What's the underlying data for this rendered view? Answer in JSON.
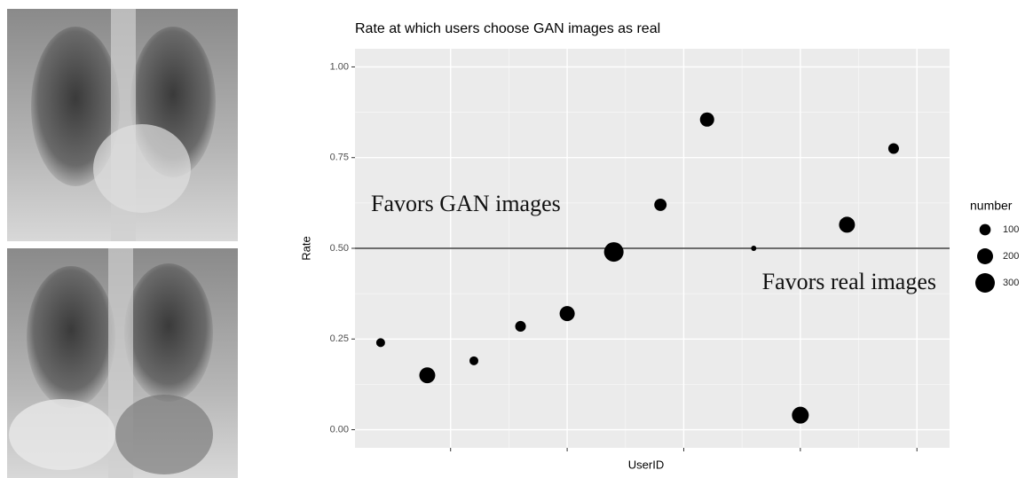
{
  "chart_data": {
    "type": "scatter",
    "title": "Rate at which users choose GAN images as real",
    "x_label": "UserID",
    "y_label": "Rate",
    "x": [
      1,
      2,
      3,
      4,
      5,
      6,
      7,
      8,
      9,
      10,
      11,
      12
    ],
    "values": [
      0.24,
      0.15,
      0.19,
      0.285,
      0.32,
      0.49,
      0.62,
      0.855,
      0.5,
      0.04,
      0.565,
      0.775
    ],
    "sizes": [
      62,
      200,
      62,
      90,
      180,
      300,
      120,
      160,
      22,
      224,
      200,
      90
    ],
    "color": "#000000",
    "xlim": [
      0.45,
      13.2
    ],
    "xticks": [
      2.5,
      5,
      7.5,
      10,
      12.5
    ],
    "ylim": [
      -0.05,
      1.05
    ],
    "yticks": [
      {
        "value": 0,
        "label": "0.00"
      },
      {
        "value": 0.25,
        "label": "0.25"
      },
      {
        "value": 0.5,
        "label": "0.50"
      },
      {
        "value": 0.75,
        "label": "0.75"
      },
      {
        "value": 1,
        "label": "1.00"
      }
    ],
    "hline": 0.5,
    "annotations": [
      "Favors GAN images",
      "Favors real images"
    ],
    "size_legend": {
      "title": "number",
      "values": [
        100,
        200,
        300
      ]
    },
    "grid": true
  }
}
